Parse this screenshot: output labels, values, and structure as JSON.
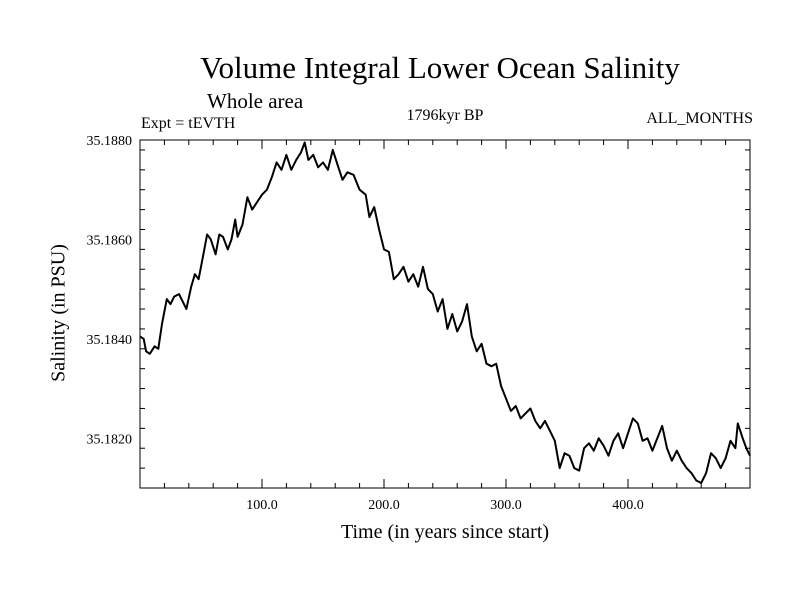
{
  "chart_data": {
    "type": "line",
    "title": "Volume Integral Lower Ocean Salinity",
    "subtitle": "Whole area",
    "experiment": "Expt = tEVTH",
    "period": "1796kyr BP",
    "months": "ALL_MONTHS",
    "xlabel": "Time (in years since start)",
    "ylabel": "Salinity (in PSU)",
    "xlim": [
      0,
      500
    ],
    "ylim": [
      35.181,
      35.188
    ],
    "xticks": [
      100,
      200,
      300,
      400
    ],
    "xtick_labels": [
      "100.0",
      "200.0",
      "300.0",
      "400.0"
    ],
    "yticks": [
      35.182,
      35.184,
      35.186,
      35.188
    ],
    "ytick_labels": [
      "35.1820",
      "35.1840",
      "35.1860",
      "35.1880"
    ],
    "series": [
      {
        "name": "Lower ocean salinity",
        "color": "#000000",
        "points": [
          [
            0,
            35.18405
          ],
          [
            3,
            35.184
          ],
          [
            5,
            35.18375
          ],
          [
            8,
            35.1837
          ],
          [
            12,
            35.18385
          ],
          [
            15,
            35.1838
          ],
          [
            18,
            35.1843
          ],
          [
            22,
            35.1848
          ],
          [
            25,
            35.1847
          ],
          [
            28,
            35.18485
          ],
          [
            32,
            35.1849
          ],
          [
            35,
            35.18475
          ],
          [
            38,
            35.1846
          ],
          [
            42,
            35.18505
          ],
          [
            45,
            35.1853
          ],
          [
            48,
            35.1852
          ],
          [
            52,
            35.1857
          ],
          [
            55,
            35.1861
          ],
          [
            58,
            35.186
          ],
          [
            62,
            35.1857
          ],
          [
            65,
            35.1861
          ],
          [
            68,
            35.18605
          ],
          [
            72,
            35.1858
          ],
          [
            75,
            35.186
          ],
          [
            78,
            35.1864
          ],
          [
            80,
            35.18605
          ],
          [
            84,
            35.1863
          ],
          [
            88,
            35.18685
          ],
          [
            92,
            35.1866
          ],
          [
            96,
            35.18675
          ],
          [
            100,
            35.1869
          ],
          [
            104,
            35.187
          ],
          [
            108,
            35.18725
          ],
          [
            112,
            35.18755
          ],
          [
            116,
            35.1874
          ],
          [
            120,
            35.1877
          ],
          [
            124,
            35.1874
          ],
          [
            128,
            35.1876
          ],
          [
            132,
            35.18775
          ],
          [
            135,
            35.18795
          ],
          [
            138,
            35.1876
          ],
          [
            142,
            35.1877
          ],
          [
            146,
            35.18745
          ],
          [
            150,
            35.18755
          ],
          [
            154,
            35.1874
          ],
          [
            158,
            35.1878
          ],
          [
            162,
            35.1875
          ],
          [
            166,
            35.1872
          ],
          [
            170,
            35.18735
          ],
          [
            175,
            35.1873
          ],
          [
            180,
            35.187
          ],
          [
            185,
            35.1869
          ],
          [
            188,
            35.18645
          ],
          [
            192,
            35.18665
          ],
          [
            196,
            35.1862
          ],
          [
            200,
            35.1858
          ],
          [
            204,
            35.18575
          ],
          [
            208,
            35.1852
          ],
          [
            212,
            35.1853
          ],
          [
            216,
            35.18545
          ],
          [
            220,
            35.18515
          ],
          [
            224,
            35.1853
          ],
          [
            228,
            35.18505
          ],
          [
            232,
            35.18545
          ],
          [
            236,
            35.185
          ],
          [
            240,
            35.1849
          ],
          [
            244,
            35.18455
          ],
          [
            248,
            35.1848
          ],
          [
            252,
            35.1842
          ],
          [
            256,
            35.1845
          ],
          [
            260,
            35.18415
          ],
          [
            264,
            35.18435
          ],
          [
            268,
            35.1847
          ],
          [
            272,
            35.18405
          ],
          [
            276,
            35.18375
          ],
          [
            280,
            35.1839
          ],
          [
            284,
            35.1835
          ],
          [
            288,
            35.18345
          ],
          [
            292,
            35.1835
          ],
          [
            296,
            35.18305
          ],
          [
            300,
            35.1828
          ],
          [
            304,
            35.18255
          ],
          [
            308,
            35.18265
          ],
          [
            312,
            35.1824
          ],
          [
            316,
            35.1825
          ],
          [
            320,
            35.1826
          ],
          [
            324,
            35.18235
          ],
          [
            328,
            35.1822
          ],
          [
            332,
            35.18235
          ],
          [
            336,
            35.18215
          ],
          [
            340,
            35.18195
          ],
          [
            344,
            35.1814
          ],
          [
            348,
            35.1817
          ],
          [
            352,
            35.18165
          ],
          [
            356,
            35.1814
          ],
          [
            360,
            35.18135
          ],
          [
            364,
            35.1818
          ],
          [
            368,
            35.1819
          ],
          [
            372,
            35.18175
          ],
          [
            376,
            35.182
          ],
          [
            380,
            35.18185
          ],
          [
            384,
            35.18165
          ],
          [
            388,
            35.18195
          ],
          [
            392,
            35.1821
          ],
          [
            396,
            35.1818
          ],
          [
            400,
            35.1821
          ],
          [
            404,
            35.1824
          ],
          [
            408,
            35.1823
          ],
          [
            412,
            35.18195
          ],
          [
            416,
            35.182
          ],
          [
            420,
            35.18175
          ],
          [
            424,
            35.182
          ],
          [
            428,
            35.18225
          ],
          [
            432,
            35.1818
          ],
          [
            436,
            35.18155
          ],
          [
            440,
            35.18175
          ],
          [
            444,
            35.18155
          ],
          [
            448,
            35.1814
          ],
          [
            452,
            35.1813
          ],
          [
            456,
            35.18115
          ],
          [
            460,
            35.1811
          ],
          [
            464,
            35.1813
          ],
          [
            468,
            35.1817
          ],
          [
            472,
            35.1816
          ],
          [
            476,
            35.1814
          ],
          [
            480,
            35.1816
          ],
          [
            484,
            35.18195
          ],
          [
            488,
            35.1818
          ],
          [
            490,
            35.1823
          ],
          [
            494,
            35.182
          ],
          [
            497,
            35.1818
          ],
          [
            500,
            35.18165
          ]
        ]
      }
    ]
  }
}
